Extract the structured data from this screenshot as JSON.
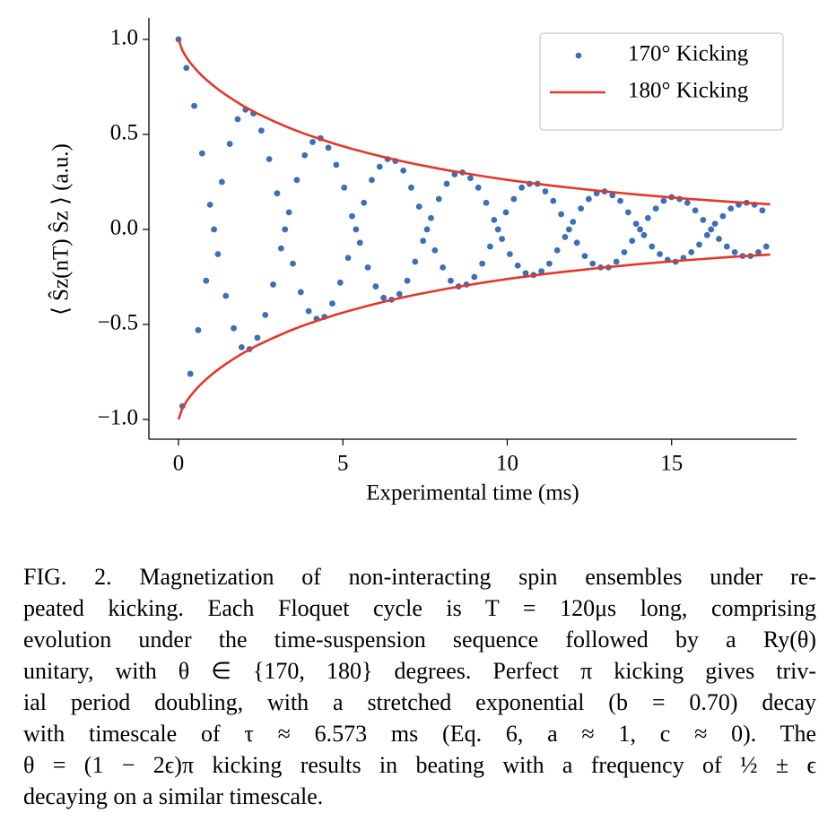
{
  "chart_data": {
    "type": "scatter",
    "xlabel": "Experimental time (ms)",
    "ylabel": "⟨ Ŝz(nT) Ŝz ⟩ (a.u.)",
    "xlim": [
      -0.9,
      18.8
    ],
    "ylim": [
      -1.104,
      1.113
    ],
    "xticks": [
      0,
      5,
      10,
      15
    ],
    "yticks": [
      {
        "value": -1,
        "label": "−1.0"
      },
      {
        "value": -0.5,
        "label": "−0.5"
      },
      {
        "value": 0,
        "label": "0.0"
      },
      {
        "value": 0.5,
        "label": "0.5"
      },
      {
        "value": 1,
        "label": "1.0"
      }
    ],
    "legend": "upper right",
    "series": [
      {
        "name": "170° Kicking",
        "type": "scatter",
        "color": "#3b6fb6",
        "x": [
          0,
          0.12,
          0.24,
          0.36,
          0.48,
          0.6,
          0.72,
          0.84,
          0.96,
          1.08,
          1.2,
          1.32,
          1.44,
          1.56,
          1.68,
          1.8,
          1.92,
          2.04,
          2.16,
          2.28,
          2.4,
          2.52,
          2.64,
          2.76,
          2.88,
          3,
          3.12,
          3.24,
          3.36,
          3.48,
          3.6,
          3.72,
          3.84,
          3.96,
          4.08,
          4.2,
          4.32,
          4.44,
          4.56,
          4.68,
          4.8,
          4.92,
          5.04,
          5.16,
          5.28,
          5.4,
          5.52,
          5.64,
          5.76,
          5.88,
          6,
          6.12,
          6.24,
          6.36,
          6.48,
          6.6,
          6.72,
          6.84,
          6.96,
          7.08,
          7.2,
          7.32,
          7.44,
          7.56,
          7.68,
          7.8,
          7.92,
          8.04,
          8.16,
          8.28,
          8.4,
          8.52,
          8.64,
          8.76,
          8.88,
          9,
          9.12,
          9.24,
          9.36,
          9.48,
          9.6,
          9.72,
          9.84,
          9.96,
          10.08,
          10.2,
          10.32,
          10.44,
          10.56,
          10.68,
          10.8,
          10.92,
          11.04,
          11.16,
          11.28,
          11.4,
          11.52,
          11.64,
          11.76,
          11.88,
          12,
          12.12,
          12.24,
          12.36,
          12.48,
          12.6,
          12.72,
          12.84,
          12.96,
          13.08,
          13.2,
          13.32,
          13.44,
          13.56,
          13.68,
          13.8,
          13.92,
          14.04,
          14.16,
          14.28,
          14.4,
          14.52,
          14.64,
          14.76,
          14.88,
          15,
          15.12,
          15.24,
          15.36,
          15.48,
          15.6,
          15.72,
          15.84,
          15.96,
          16.08,
          16.2,
          16.32,
          16.44,
          16.56,
          16.68,
          16.8,
          16.92,
          17.04,
          17.16,
          17.28,
          17.4,
          17.52,
          17.64,
          17.76,
          17.88
        ],
        "values": [
          1,
          -0.93,
          0.85,
          -0.76,
          0.65,
          -0.53,
          0.4,
          -0.27,
          0.13,
          0,
          -0.13,
          0.25,
          -0.35,
          0.45,
          -0.52,
          0.58,
          -0.62,
          0.63,
          -0.63,
          0.61,
          -0.57,
          0.52,
          -0.45,
          0.37,
          -0.29,
          0.19,
          -0.1,
          0,
          0.09,
          -0.18,
          0.26,
          -0.33,
          0.39,
          -0.43,
          0.46,
          -0.47,
          0.48,
          -0.46,
          0.43,
          -0.39,
          0.34,
          -0.28,
          0.22,
          -0.15,
          0.07,
          0,
          -0.07,
          0.14,
          -0.2,
          0.26,
          -0.3,
          0.33,
          -0.36,
          0.37,
          -0.37,
          0.36,
          -0.34,
          0.31,
          -0.27,
          0.22,
          -0.17,
          0.12,
          -0.06,
          0,
          0.06,
          -0.11,
          0.16,
          -0.2,
          0.24,
          -0.27,
          0.29,
          -0.3,
          0.3,
          -0.29,
          0.27,
          -0.25,
          0.22,
          -0.18,
          0.14,
          -0.09,
          0.05,
          0,
          -0.05,
          0.09,
          -0.13,
          0.16,
          -0.19,
          0.22,
          -0.23,
          0.24,
          -0.24,
          0.24,
          -0.22,
          0.2,
          -0.18,
          0.15,
          -0.11,
          0.08,
          -0.04,
          0,
          0.04,
          -0.07,
          0.11,
          -0.14,
          0.16,
          -0.18,
          0.19,
          -0.2,
          0.2,
          -0.2,
          0.18,
          -0.17,
          0.15,
          -0.12,
          0.09,
          -0.06,
          0.03,
          0,
          -0.03,
          0.06,
          -0.09,
          0.11,
          -0.13,
          0.15,
          -0.16,
          0.17,
          -0.17,
          0.16,
          -0.15,
          0.14,
          -0.12,
          0.1,
          -0.08,
          0.05,
          -0.03,
          0,
          0.03,
          -0.05,
          0.07,
          -0.09,
          0.11,
          -0.12,
          0.13,
          -0.14,
          0.14,
          -0.14,
          0.13,
          -0.12,
          0.1,
          -0.09
        ]
      },
      {
        "name": "180° Kicking",
        "type": "line",
        "color": "#e3372a",
        "x": [
          0,
          0.12,
          0.24,
          0.36,
          0.48,
          0.6,
          0.72,
          0.84,
          0.96,
          1.08,
          1.2,
          1.44,
          1.68,
          1.92,
          2.16,
          2.4,
          2.88,
          3.36,
          3.84,
          4.32,
          4.8,
          5.28,
          5.76,
          6.24,
          6.72,
          7.2,
          7.68,
          8.16,
          8.64,
          9.12,
          9.6,
          10.08,
          10.56,
          11.04,
          11.52,
          12,
          12.48,
          12.96,
          13.44,
          13.92,
          14.4,
          14.88,
          15.36,
          15.84,
          16.32,
          16.8,
          17.28,
          17.76,
          18
        ],
        "values": [
          1,
          0.941,
          0.906,
          0.877,
          0.852,
          0.829,
          0.808,
          0.789,
          0.771,
          0.754,
          0.738,
          0.708,
          0.681,
          0.655,
          0.632,
          0.61,
          0.571,
          0.535,
          0.503,
          0.475,
          0.448,
          0.424,
          0.402,
          0.381,
          0.362,
          0.344,
          0.328,
          0.312,
          0.298,
          0.284,
          0.271,
          0.259,
          0.248,
          0.237,
          0.227,
          0.218,
          0.209,
          0.2,
          0.192,
          0.184,
          0.177,
          0.17,
          0.163,
          0.157,
          0.151,
          0.145,
          0.14,
          0.135,
          0.132
        ]
      },
      {
        "type": "line",
        "color": "#e3372a",
        "x": [
          0,
          0.12,
          0.24,
          0.36,
          0.48,
          0.6,
          0.72,
          0.84,
          0.96,
          1.08,
          1.2,
          1.44,
          1.68,
          1.92,
          2.16,
          2.4,
          2.88,
          3.36,
          3.84,
          4.32,
          4.8,
          5.28,
          5.76,
          6.24,
          6.72,
          7.2,
          7.68,
          8.16,
          8.64,
          9.12,
          9.6,
          10.08,
          10.56,
          11.04,
          11.52,
          12,
          12.48,
          12.96,
          13.44,
          13.92,
          14.4,
          14.88,
          15.36,
          15.84,
          16.32,
          16.8,
          17.28,
          17.76,
          18
        ],
        "values": [
          -1,
          -0.941,
          -0.906,
          -0.877,
          -0.852,
          -0.829,
          -0.808,
          -0.789,
          -0.771,
          -0.754,
          -0.738,
          -0.708,
          -0.681,
          -0.655,
          -0.632,
          -0.61,
          -0.571,
          -0.535,
          -0.503,
          -0.475,
          -0.448,
          -0.424,
          -0.402,
          -0.381,
          -0.362,
          -0.344,
          -0.328,
          -0.312,
          -0.298,
          -0.284,
          -0.271,
          -0.259,
          -0.248,
          -0.237,
          -0.227,
          -0.218,
          -0.209,
          -0.2,
          -0.192,
          -0.184,
          -0.177,
          -0.17,
          -0.163,
          -0.157,
          -0.151,
          -0.145,
          -0.14,
          -0.135,
          -0.132
        ]
      }
    ]
  },
  "caption": {
    "lines": [
      "FIG. 2. Magnetization of non-interacting spin ensembles under re-",
      "peated kicking. Each Floquet cycle is T = 120μs long, comprising",
      "evolution under the time-suspension sequence followed by a Ry(θ)",
      "unitary, with θ ∈ {170, 180} degrees. Perfect π kicking gives triv-",
      "ial period doubling, with a stretched exponential (b = 0.70) decay",
      "with timescale of τ ≈ 6.573 ms (Eq. 6, a ≈ 1, c ≈ 0). The",
      "θ = (1 − 2ϵ)π kicking results in beating with a frequency of ½ ± ϵ",
      "decaying on a similar timescale."
    ]
  }
}
